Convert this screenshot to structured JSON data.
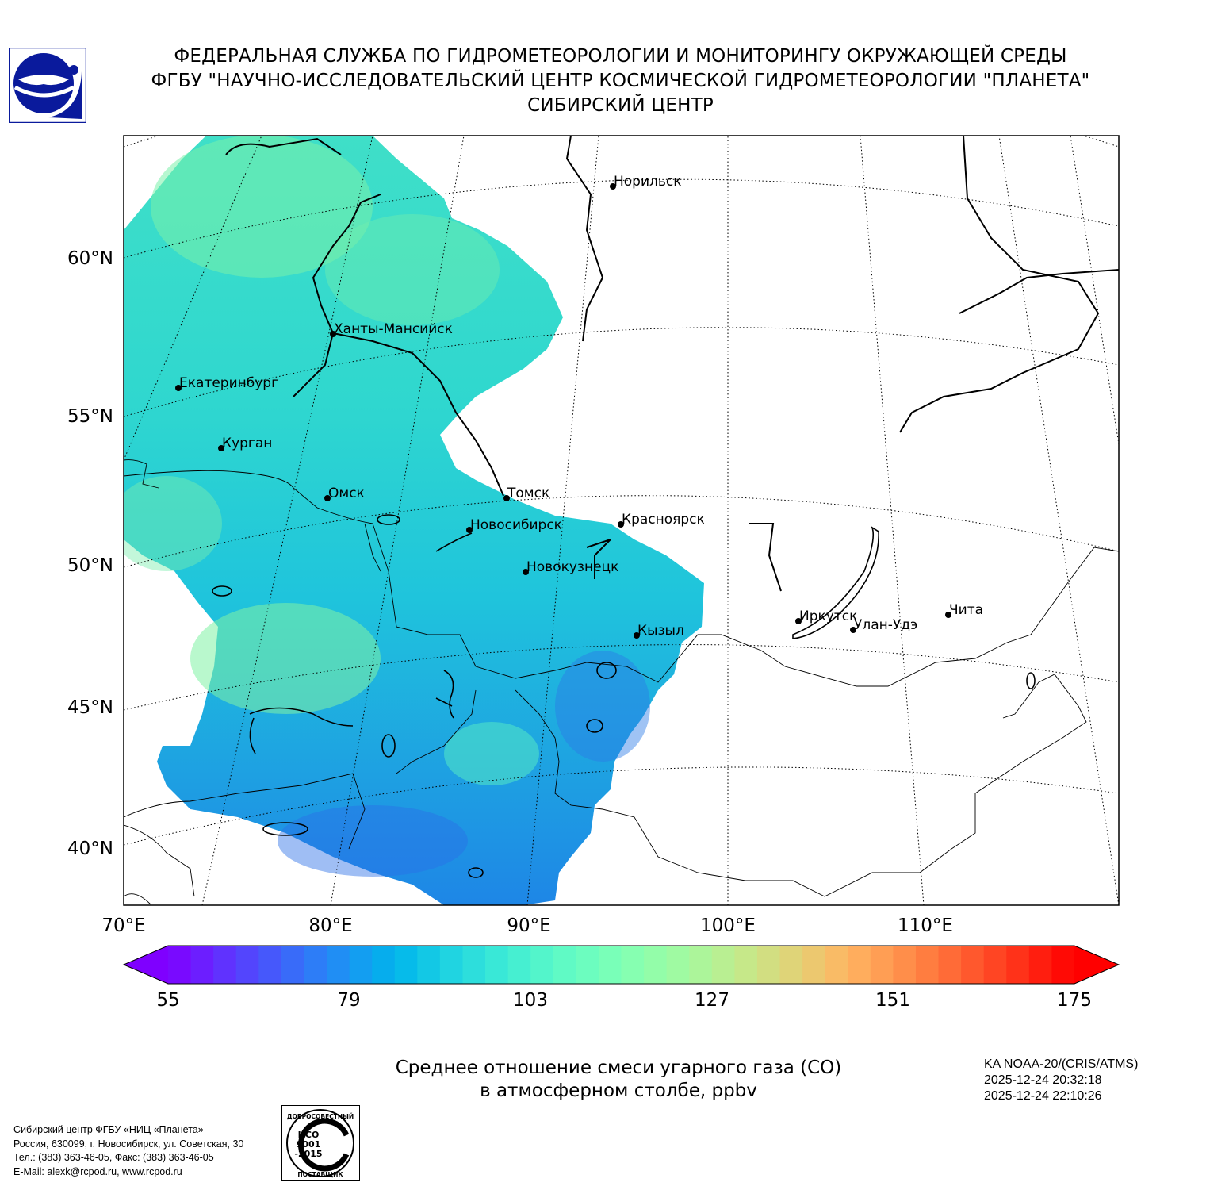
{
  "header": {
    "line1": "ФЕДЕРАЛЬНАЯ СЛУЖБА ПО ГИДРОМЕТЕОРОЛОГИИ И МОНИТОРИНГУ ОКРУЖАЮЩЕЙ СРЕДЫ",
    "line2": "ФГБУ \"НАУЧНО-ИССЛЕДОВАТЕЛЬСКИЙ ЦЕНТР КОСМИЧЕСКОЙ ГИДРОМЕТЕОРОЛОГИИ \"ПЛАНЕТА\"",
    "line3": "СИБИРСКИЙ ЦЕНТР"
  },
  "map": {
    "lat_labels": [
      "60°N",
      "55°N",
      "50°N",
      "45°N",
      "40°N"
    ],
    "lon_labels": [
      "70°E",
      "80°E",
      "90°E",
      "100°E",
      "110°E"
    ],
    "cities": [
      {
        "name": "Норильск"
      },
      {
        "name": "Ханты-Мансийск"
      },
      {
        "name": "Екатеринбург"
      },
      {
        "name": "Курган"
      },
      {
        "name": "Омск"
      },
      {
        "name": "Томск"
      },
      {
        "name": "Новосибирск"
      },
      {
        "name": "Красноярск"
      },
      {
        "name": "Новокузнецк"
      },
      {
        "name": "Кызыл"
      },
      {
        "name": "Иркутск"
      },
      {
        "name": "Улан-Удэ"
      },
      {
        "name": "Чита"
      }
    ]
  },
  "colorbar": {
    "min": 55,
    "max": 175,
    "step": 3,
    "ticks": [
      "55",
      "79",
      "103",
      "127",
      "151",
      "175"
    ],
    "extend": "both"
  },
  "caption": {
    "line1": "Среднее отношение смеси угарного газа (CO)",
    "line2": "в атмосферном столбе, ppbv"
  },
  "satellite": {
    "name": "KA NOAA-20/(CRIS/ATMS)",
    "time1": "2025-12-24 20:32:18",
    "time2": "2025-12-24 22:10:26"
  },
  "footer": {
    "line1": "Сибирский центр ФГБУ «НИЦ «Планета»",
    "line2": "Россия, 630099, г. Новосибирск, ул. Советская, 30",
    "line3": "Тел.: (383) 363-46-05, Факс: (383) 363-46-05",
    "line4": "E-Mail: alexk@rcpod.ru, www.rcpod.ru"
  },
  "iso_badge": {
    "top_text": "ДОБРОСОВЕСТНЫЙ",
    "line1": "ИСО",
    "line2": "9001",
    "line3": "-2015",
    "bottom_text": "ПОСТАВЩИК"
  },
  "colors": {
    "accent_blue": "#0a1a9c",
    "data_low": "#1e7ce8",
    "data_mid": "#2ad8d2",
    "data_high": "#78f0a8"
  }
}
